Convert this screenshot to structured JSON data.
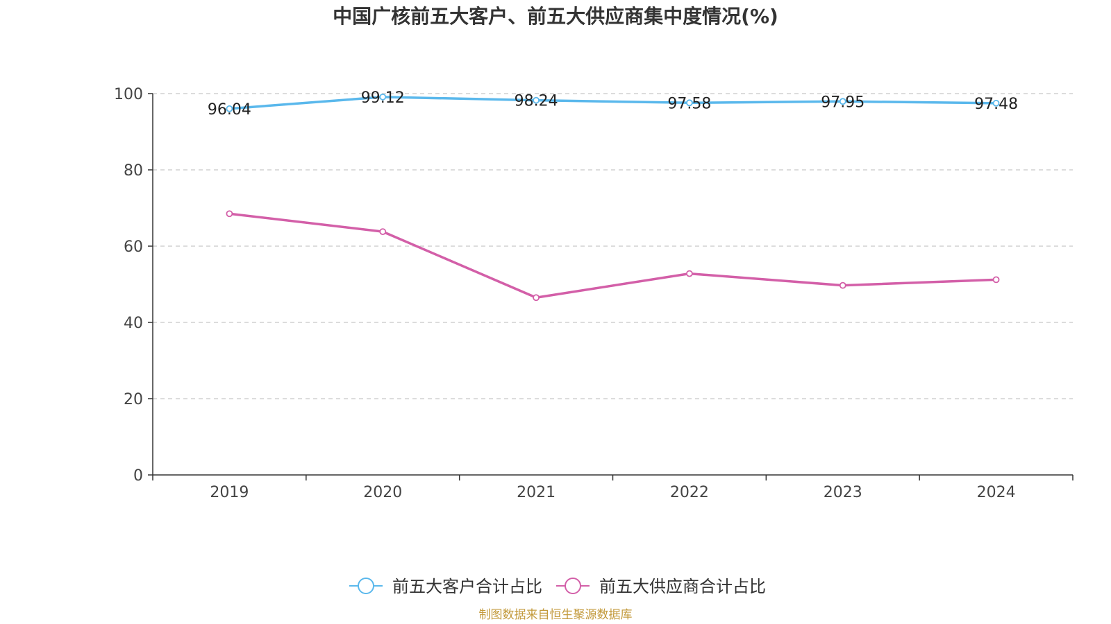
{
  "chart_data": {
    "type": "line",
    "title": "中国广核前五大客户、前五大供应商集中度情况(%)",
    "categories": [
      "2019",
      "2020",
      "2021",
      "2022",
      "2023",
      "2024"
    ],
    "ylim": [
      0,
      100
    ],
    "yticks": [
      0,
      20,
      40,
      60,
      80,
      100
    ],
    "grid": true,
    "legend_position": "bottom",
    "series": [
      {
        "name": "前五大客户合计占比",
        "color": "#5ab8ec",
        "values": [
          96.04,
          99.12,
          98.24,
          97.58,
          97.95,
          97.48
        ],
        "labels": [
          "96.04",
          "99.12",
          "98.24",
          "97.58",
          "97.95",
          "97.48"
        ]
      },
      {
        "name": "前五大供应商合计占比",
        "color": "#d35fa8",
        "values": [
          68.5,
          63.8,
          46.5,
          52.8,
          49.7,
          51.2
        ]
      }
    ]
  },
  "source": "制图数据来自恒生聚源数据库"
}
